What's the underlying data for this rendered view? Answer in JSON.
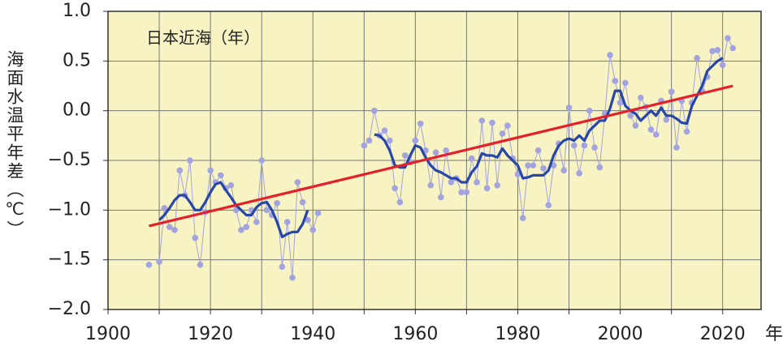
{
  "chart_data": {
    "type": "line",
    "annotation": "日本近海（年）",
    "ylabel": "海面水温平年差（℃）",
    "xlabel": "年",
    "xlim": [
      1900,
      2027.5
    ],
    "xticks": [
      1900,
      1920,
      1940,
      1960,
      1980,
      2000,
      2020
    ],
    "minor_xticks": [
      1910,
      1930,
      1950,
      1970,
      1990,
      2010
    ],
    "ylim": [
      -2,
      1
    ],
    "yticks": [
      {
        "value": 1,
        "label": "1.0"
      },
      0.5,
      {
        "value": 0,
        "label": "0.0"
      },
      {
        "value": -0.5,
        "label": "−0.5"
      },
      {
        "value": -1,
        "label": "−1.0"
      },
      {
        "value": -1.5,
        "label": "−1.5"
      },
      {
        "value": -2,
        "label": "−2.0"
      }
    ],
    "grid": true,
    "background": "#f7f3c2",
    "series": [
      {
        "style": "points",
        "color": "#a3a3e0",
        "x": [
          1908,
          1909,
          1910,
          1911,
          1912,
          1913,
          1914,
          1915,
          1916,
          1917,
          1918,
          1919,
          1920,
          1921,
          1922,
          1923,
          1924,
          1925,
          1926,
          1927,
          1928,
          1929,
          1930,
          1931,
          1932,
          1933,
          1934,
          1935,
          1936,
          1937,
          1938,
          1939,
          1940,
          1941,
          1942,
          1943,
          1944,
          1945,
          1946,
          1947,
          1948,
          1949,
          1950,
          1951,
          1952,
          1953,
          1954,
          1955,
          1956,
          1957,
          1958,
          1959,
          1960,
          1961,
          1962,
          1963,
          1964,
          1965,
          1966,
          1967,
          1968,
          1969,
          1970,
          1971,
          1972,
          1973,
          1974,
          1975,
          1976,
          1977,
          1978,
          1979,
          1980,
          1981,
          1982,
          1983,
          1984,
          1985,
          1986,
          1987,
          1988,
          1989,
          1990,
          1991,
          1992,
          1993,
          1994,
          1995,
          1996,
          1997,
          1998,
          1999,
          2000,
          2001,
          2002,
          2003,
          2004,
          2005,
          2006,
          2007,
          2008,
          2009,
          2010,
          2011,
          2012,
          2013,
          2014,
          2015,
          2016,
          2017,
          2018,
          2019,
          2020,
          2021,
          2022
        ],
        "values": [
          -1.55,
          null,
          -1.52,
          -0.98,
          -1.17,
          -1.2,
          -0.6,
          -0.85,
          -0.5,
          -1.28,
          -1.55,
          -1.02,
          -0.6,
          -0.72,
          -0.65,
          -0.78,
          -0.75,
          -1.0,
          -1.2,
          -1.17,
          -1.0,
          -1.12,
          -0.5,
          -1.0,
          -1.05,
          -0.93,
          -1.57,
          -1.12,
          -1.68,
          -0.72,
          -0.92,
          -1.1,
          -1.2,
          -1.03,
          null,
          null,
          null,
          null,
          null,
          null,
          null,
          null,
          -0.35,
          -0.3,
          0.0,
          -0.25,
          -0.2,
          -0.3,
          -0.78,
          -0.92,
          -0.45,
          -0.52,
          -0.3,
          -0.13,
          -0.4,
          -0.75,
          -0.42,
          -0.87,
          -0.4,
          -0.72,
          -0.68,
          -0.82,
          -0.82,
          -0.48,
          -0.72,
          -0.1,
          -0.78,
          -0.12,
          -0.75,
          -0.23,
          -0.15,
          -0.48,
          -0.64,
          -1.08,
          -0.55,
          -0.55,
          -0.4,
          -0.58,
          -0.95,
          -0.55,
          -0.33,
          -0.6,
          0.03,
          -0.35,
          -0.63,
          -0.35,
          0.0,
          -0.37,
          -0.57,
          -0.03,
          0.56,
          0.3,
          0.08,
          0.28,
          -0.05,
          -0.15,
          0.13,
          0.04,
          -0.19,
          -0.24,
          0.1,
          -0.09,
          0.19,
          -0.37,
          0.1,
          -0.21,
          0.08,
          0.53,
          0.2,
          0.34,
          0.6,
          0.61,
          0.46,
          0.73,
          0.63
        ]
      },
      {
        "style": "line",
        "color": "#2647a8",
        "x": [
          1910,
          1911,
          1912,
          1913,
          1914,
          1915,
          1916,
          1917,
          1918,
          1919,
          1920,
          1921,
          1922,
          1923,
          1924,
          1925,
          1926,
          1927,
          1928,
          1929,
          1930,
          1931,
          1932,
          1933,
          1934,
          1935,
          1936,
          1937,
          1938,
          1939,
          1940,
          1941,
          1942,
          1943,
          1944,
          1945,
          1946,
          1947,
          1948,
          1949,
          1950,
          1951,
          1952,
          1953,
          1954,
          1955,
          1956,
          1957,
          1958,
          1959,
          1960,
          1961,
          1962,
          1963,
          1964,
          1965,
          1966,
          1967,
          1968,
          1969,
          1970,
          1971,
          1972,
          1973,
          1974,
          1975,
          1976,
          1977,
          1978,
          1979,
          1980,
          1981,
          1982,
          1983,
          1984,
          1985,
          1986,
          1987,
          1988,
          1989,
          1990,
          1991,
          1992,
          1993,
          1994,
          1995,
          1996,
          1997,
          1998,
          1999,
          2000,
          2001,
          2002,
          2003,
          2004,
          2005,
          2006,
          2007,
          2008,
          2009,
          2010,
          2011,
          2012,
          2013,
          2014,
          2015,
          2016,
          2017,
          2018,
          2019,
          2020
        ],
        "values": [
          -1.1,
          -1.05,
          -0.98,
          -0.9,
          -0.85,
          -0.85,
          -0.92,
          -1.0,
          -1.0,
          -0.92,
          -0.82,
          -0.74,
          -0.72,
          -0.8,
          -0.87,
          -0.95,
          -1.0,
          -1.05,
          -1.05,
          -0.97,
          -0.93,
          -0.92,
          -1.0,
          -1.12,
          -1.27,
          -1.24,
          -1.22,
          -1.22,
          -1.14,
          -1.0,
          null,
          null,
          null,
          null,
          null,
          null,
          null,
          null,
          null,
          null,
          null,
          null,
          -0.24,
          -0.25,
          -0.3,
          -0.4,
          -0.55,
          -0.57,
          -0.57,
          -0.45,
          -0.35,
          -0.37,
          -0.47,
          -0.55,
          -0.6,
          -0.62,
          -0.65,
          -0.68,
          -0.68,
          -0.72,
          -0.72,
          -0.62,
          -0.56,
          -0.43,
          -0.45,
          -0.45,
          -0.47,
          -0.38,
          -0.45,
          -0.5,
          -0.55,
          -0.68,
          -0.67,
          -0.65,
          -0.65,
          -0.65,
          -0.6,
          -0.45,
          -0.35,
          -0.3,
          -0.28,
          -0.3,
          -0.25,
          -0.3,
          -0.2,
          -0.15,
          -0.1,
          -0.1,
          0.02,
          0.2,
          0.2,
          0.05,
          0.0,
          -0.03,
          -0.1,
          -0.05,
          0.0,
          -0.05,
          0.03,
          -0.05,
          -0.05,
          -0.08,
          -0.12,
          -0.13,
          0.05,
          0.15,
          0.25,
          0.4,
          0.45,
          0.5,
          0.53
        ]
      },
      {
        "style": "line",
        "color": "#e3212b",
        "x": [
          1908,
          2022
        ],
        "values": [
          -1.16,
          0.25
        ]
      }
    ]
  }
}
